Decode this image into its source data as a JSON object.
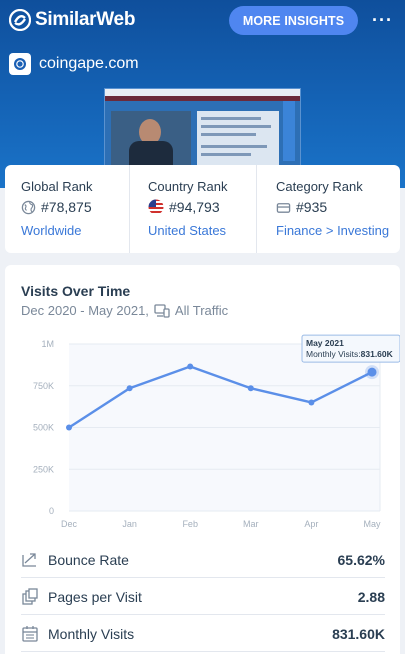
{
  "header": {
    "brand": "SimilarWeb",
    "insights_label": "MORE INSIGHTS",
    "more_icon": "more-horizontal-icon",
    "domain": "coingape.com"
  },
  "ranks": [
    {
      "title": "Global Rank",
      "icon": "globe-icon",
      "value": "#78,875",
      "link": "Worldwide"
    },
    {
      "title": "Country Rank",
      "icon": "us-flag-icon",
      "value": "#94,793",
      "link": "United States"
    },
    {
      "title": "Category Rank",
      "icon": "category-icon",
      "value": "#935",
      "link": "Finance > Investing"
    }
  ],
  "visits": {
    "title": "Visits Over Time",
    "date_range": "Dec 2020 - May 2021,",
    "traffic_type": "All Traffic"
  },
  "chart_data": {
    "type": "line",
    "categories": [
      "Dec",
      "Jan",
      "Feb",
      "Mar",
      "Apr",
      "May"
    ],
    "series": [
      {
        "values": [
          500000,
          735000,
          865000,
          735000,
          650000,
          831600
        ]
      }
    ],
    "y_ticks": [
      "0",
      "250K",
      "500K",
      "750K",
      "1M"
    ],
    "ylim": [
      0,
      1000000
    ],
    "tooltip": {
      "title": "May 2021",
      "label": "Monthly Visits:",
      "value": "831.60K"
    },
    "color": "#5b8fe8"
  },
  "metrics": [
    {
      "label": "Bounce Rate",
      "value": "65.62%",
      "icon": "trend-down-icon"
    },
    {
      "label": "Pages per Visit",
      "value": "2.88",
      "icon": "pages-icon"
    },
    {
      "label": "Monthly Visits",
      "value": "831.60K",
      "icon": "calendar-icon"
    }
  ]
}
